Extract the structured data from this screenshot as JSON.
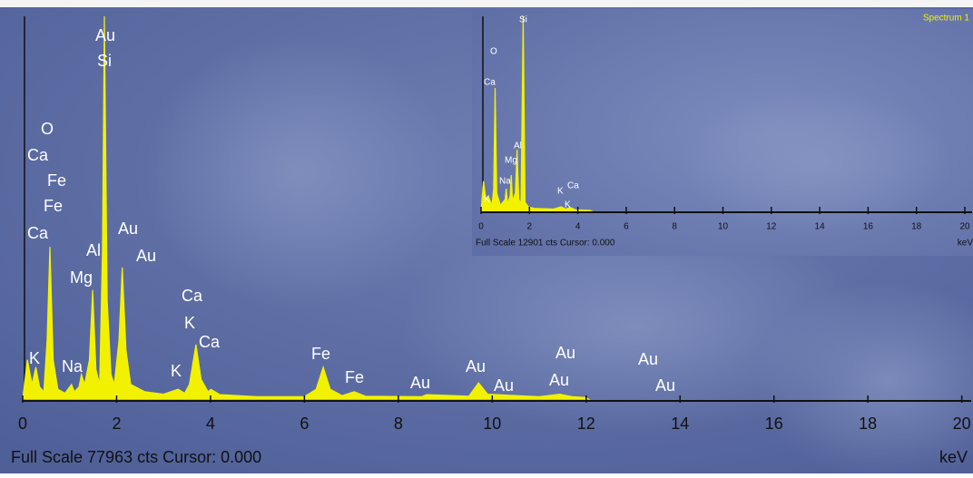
{
  "chart_data": [
    {
      "type": "area",
      "footer": "Full Scale 77963 cts Cursor: 0.000",
      "x_label": "keV",
      "x": [
        0,
        0.1,
        0.2,
        0.28,
        0.36,
        0.45,
        0.52,
        0.58,
        0.65,
        0.75,
        0.9,
        1.04,
        1.1,
        1.2,
        1.25,
        1.32,
        1.42,
        1.49,
        1.56,
        1.64,
        1.7,
        1.74,
        1.8,
        1.88,
        1.95,
        2.05,
        2.12,
        2.2,
        2.3,
        2.6,
        3.0,
        3.31,
        3.45,
        3.55,
        3.69,
        3.8,
        3.95,
        4.01,
        4.2,
        5.0,
        6.0,
        6.25,
        6.4,
        6.55,
        6.8,
        7.06,
        7.3,
        8.5,
        8.6,
        9.5,
        9.71,
        9.9,
        11.0,
        11.44,
        11.7,
        12.0,
        12.05
      ],
      "values": [
        0,
        8000,
        3000,
        6500,
        2500,
        1500,
        12000,
        31000,
        8000,
        2000,
        1200,
        3000,
        1500,
        2500,
        5000,
        3000,
        8000,
        22200,
        6000,
        3000,
        30000,
        77963,
        20000,
        5000,
        3000,
        12000,
        26800,
        10000,
        3000,
        1500,
        1000,
        2000,
        1200,
        3000,
        11100,
        4000,
        1500,
        2000,
        900,
        500,
        500,
        2000,
        6500,
        2000,
        700,
        1500,
        600,
        500,
        900,
        600,
        3300,
        1000,
        500,
        1000,
        500,
        300,
        0
      ],
      "color": "#f2f200",
      "xlim": [
        0,
        20.2
      ],
      "ylim": [
        0,
        77963
      ],
      "xticks": [
        0,
        2,
        4,
        6,
        8,
        10,
        12,
        14,
        16,
        18,
        20
      ],
      "peak_labels": [
        "Au",
        "Si",
        "O",
        "Ca",
        "Fe",
        "Fe",
        "Ca",
        "Au",
        "Al",
        "Au",
        "Mg",
        "Ca",
        "K",
        "Ca",
        "K",
        "Na",
        "K",
        "Fe",
        "Fe",
        "Au",
        "Au",
        "Au",
        "Au",
        "Au",
        "Au",
        "Au"
      ]
    },
    {
      "type": "area",
      "title": "Spectrum 1",
      "footer": "Full Scale 12901 cts Cursor: 0.000",
      "x_label": "keV",
      "x": [
        0,
        0.1,
        0.2,
        0.3,
        0.45,
        0.52,
        0.58,
        0.65,
        0.8,
        1.0,
        1.04,
        1.1,
        1.2,
        1.25,
        1.3,
        1.42,
        1.49,
        1.56,
        1.65,
        1.74,
        1.82,
        1.95,
        2.2,
        3.0,
        3.31,
        3.5,
        3.69,
        3.9,
        4.5,
        4.6
      ],
      "values": [
        0,
        2000,
        800,
        1000,
        400,
        1500,
        8160,
        1200,
        400,
        800,
        1500,
        500,
        1000,
        2400,
        700,
        1200,
        4080,
        800,
        500,
        12901,
        600,
        300,
        200,
        150,
        300,
        150,
        250,
        100,
        60,
        0
      ],
      "color": "#f2f200",
      "xlim": [
        0,
        20.3
      ],
      "ylim": [
        0,
        12901
      ],
      "xticks": [
        0,
        2,
        4,
        6,
        8,
        10,
        12,
        14,
        16,
        18,
        20
      ],
      "peak_labels": [
        "Si",
        "O",
        "Ca",
        "Al",
        "Mg",
        "Na",
        "K",
        "K",
        "Ca",
        "K"
      ]
    }
  ]
}
